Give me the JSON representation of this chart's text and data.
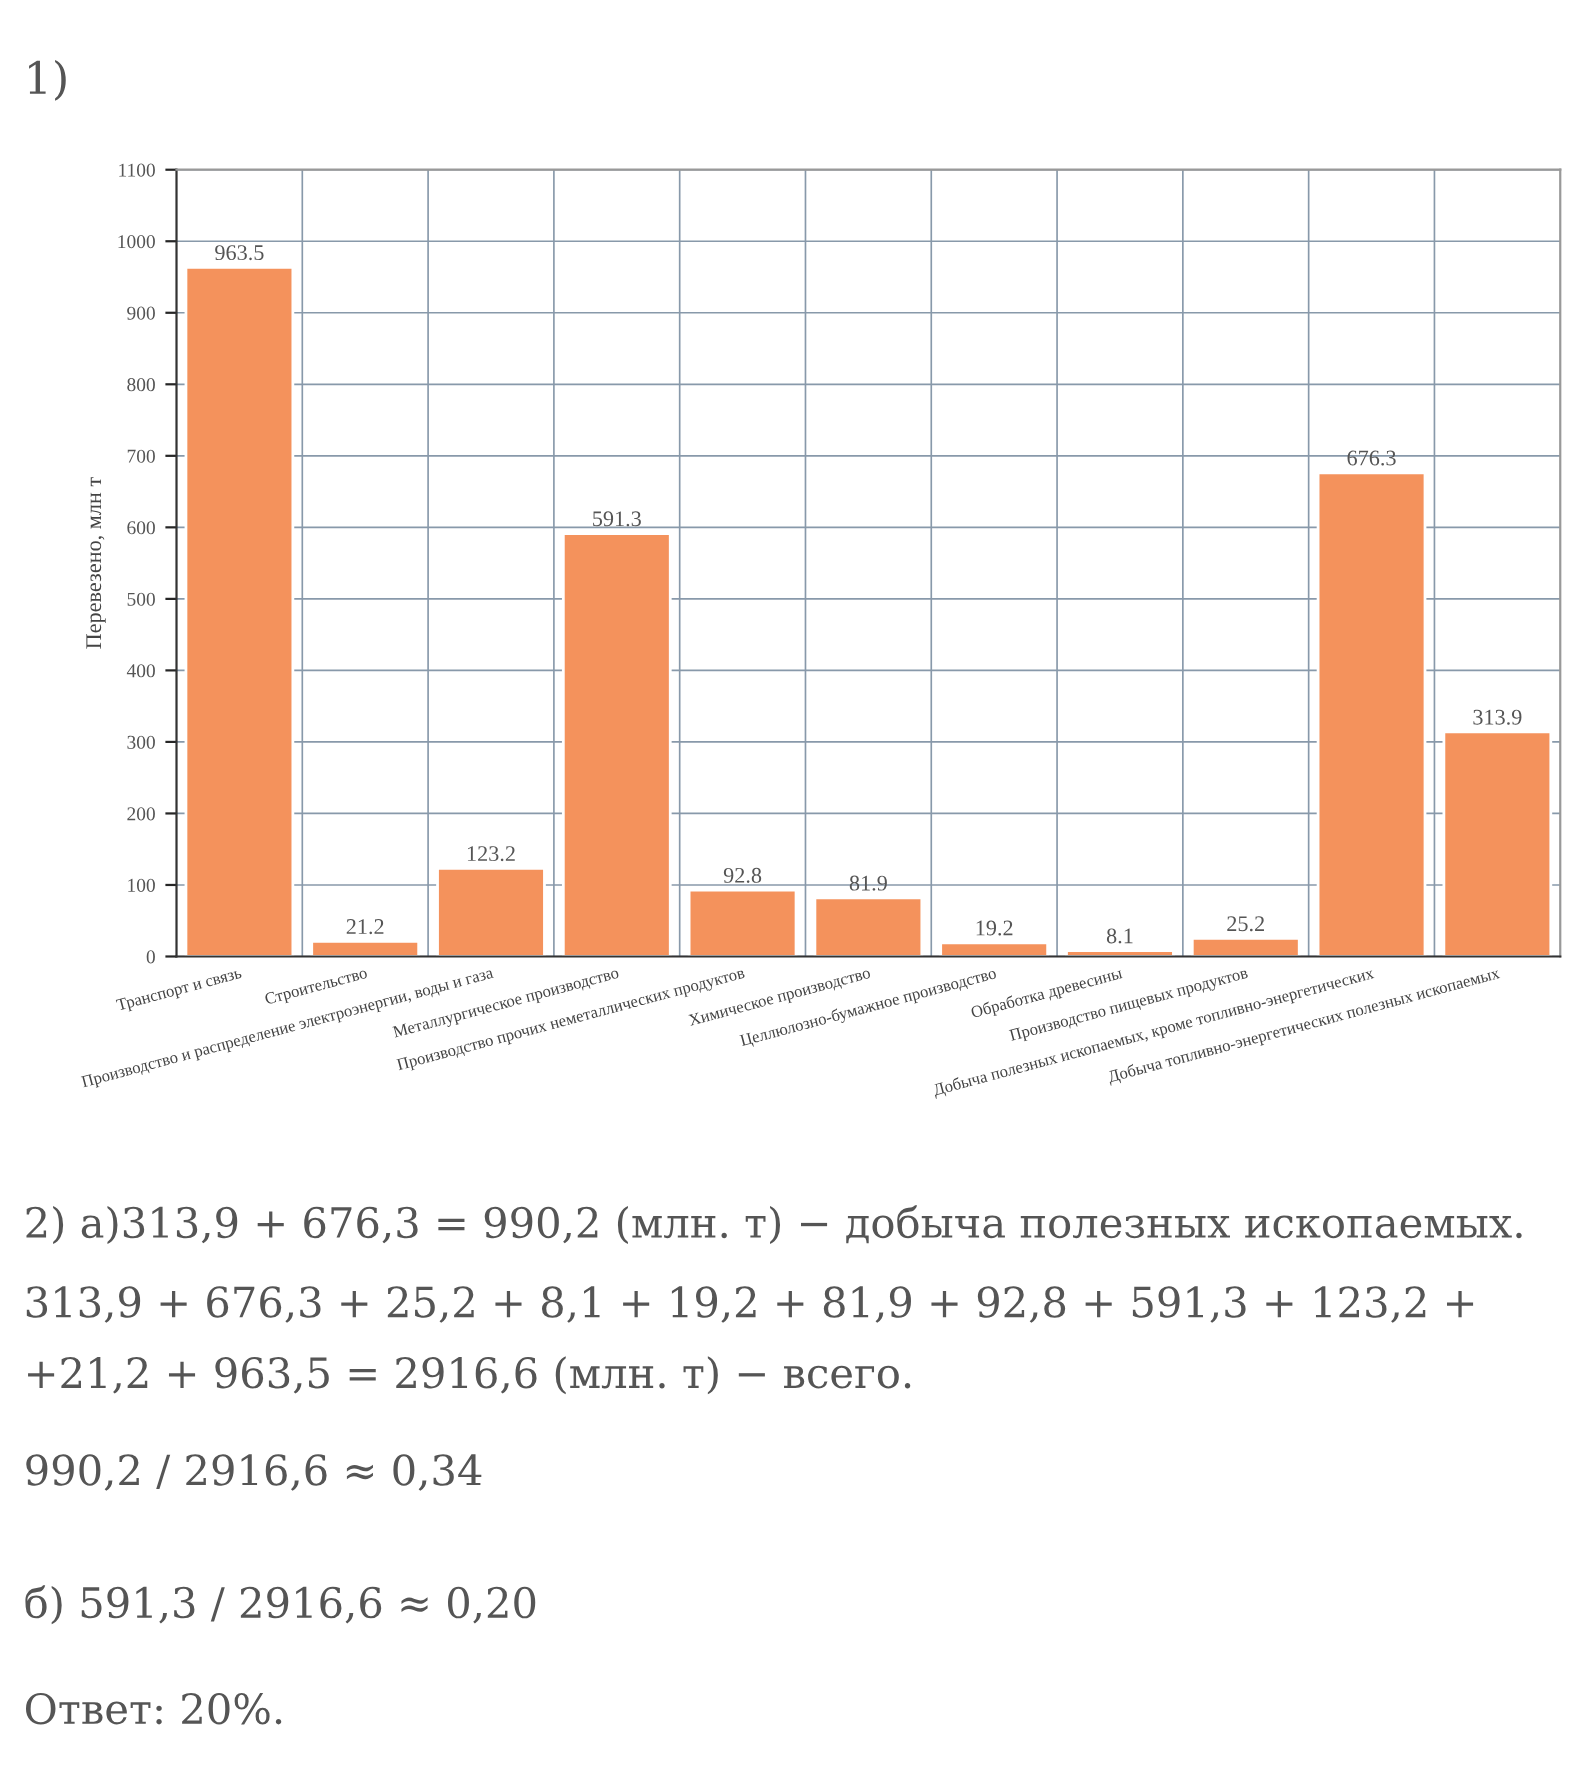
{
  "chart_data": {
    "type": "bar",
    "title": "1)",
    "ylabel": "Перевезено, млн т",
    "categories": [
      "Транспорт и связь",
      "Строительство",
      "Производство и распределение электроэнергии, воды и газа",
      "Металлургическое производство",
      "Производство прочих неметаллических продуктов",
      "Химическое производство",
      "Целлюлозно-бумажное производство",
      "Обработка древесины",
      "Производство пищевых продуктов",
      "Добыча полезных ископаемых, кроме топливно-энергетических",
      "Добыча топливно-энергетических полезных ископаемых"
    ],
    "values": [
      963.5,
      21.2,
      123.2,
      591.3,
      92.8,
      81.9,
      19.2,
      8.1,
      25.2,
      676.3,
      313.9
    ],
    "color": "#f4925c",
    "data_labels": true,
    "ylim": [
      0,
      1100
    ],
    "yticks": [
      0,
      100,
      200,
      300,
      400,
      500,
      600,
      700,
      800,
      900,
      1000,
      1100
    ],
    "grid": true,
    "annotations": [
      "2) а)313,9 + 676,3 = 990,2 (млн. т) − добыча полезных ископаемых.",
      "313,9 + 676,3 + 25,2 + 8,1 + 19,2 + 81,9 + 92,8 + 591,3 + 123,2 +",
      "+21,2 + 963,5 = 2916,6 (млн. т) − всего.",
      "990,2 / 2916,6 ≈ 0,34",
      "б) 591,3 / 2916,6 ≈ 0,20",
      "Ответ: 20%."
    ]
  }
}
